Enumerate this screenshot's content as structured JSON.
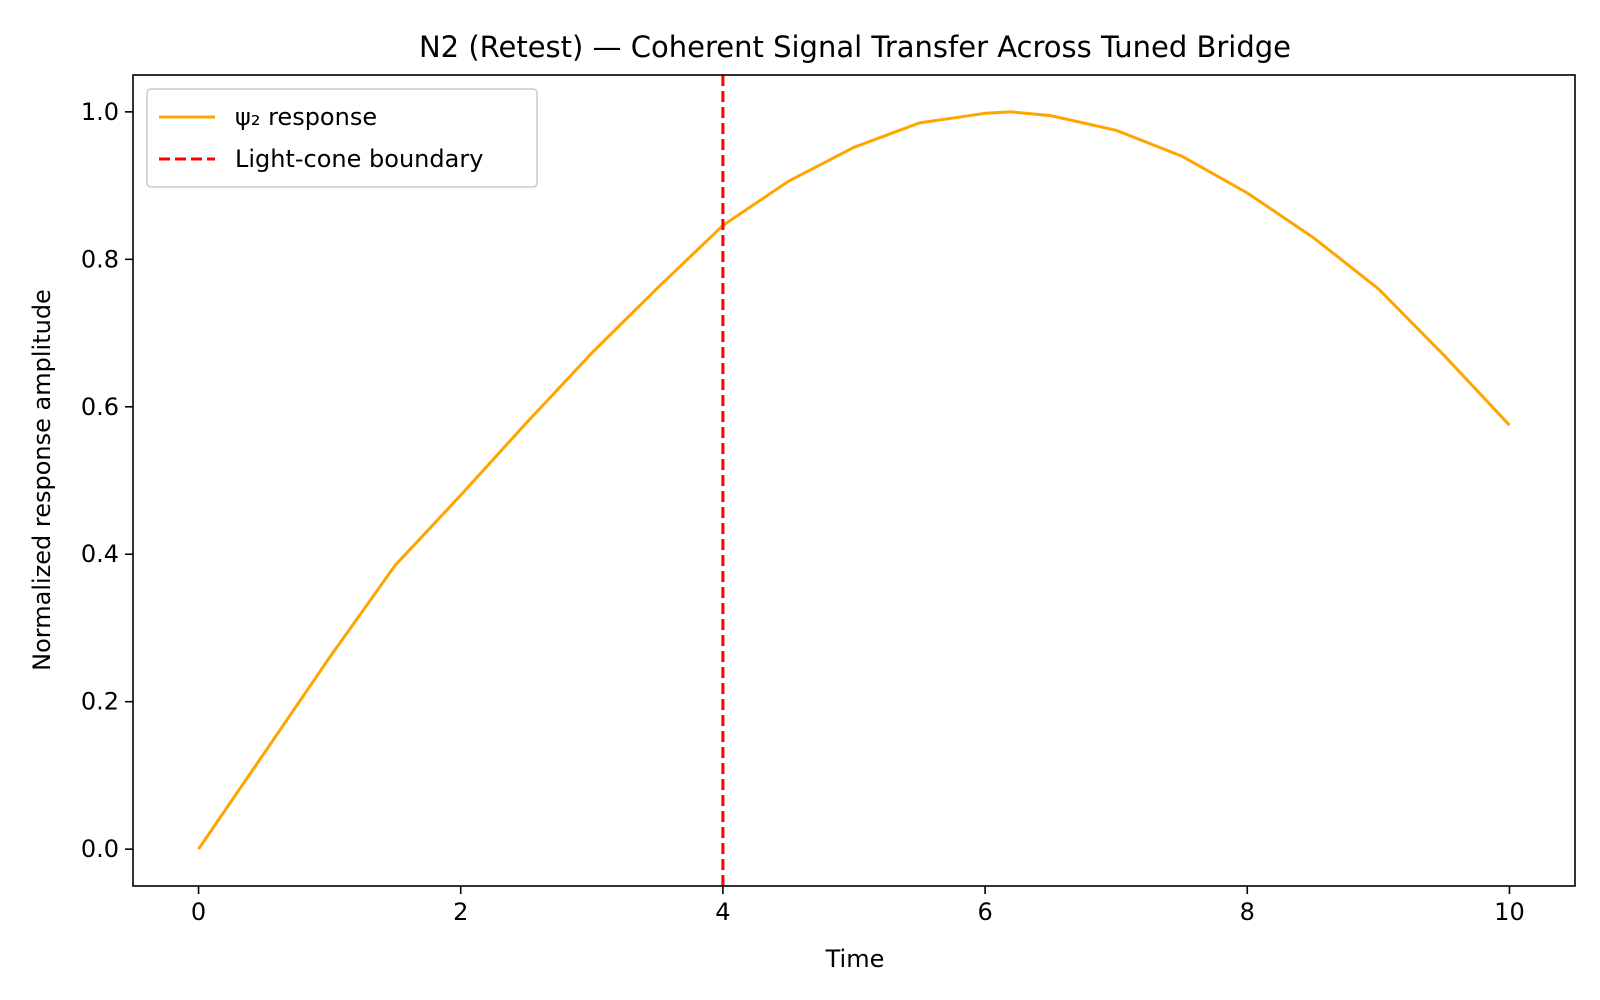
{
  "chart_data": {
    "type": "line",
    "title": "N2 (Retest) — Coherent Signal Transfer Across Tuned Bridge",
    "xlabel": "Time",
    "ylabel": "Normalized response amplitude",
    "xlim": [
      -0.5,
      10.5
    ],
    "ylim": [
      -0.05,
      1.05
    ],
    "xticks": [
      0,
      2,
      4,
      6,
      8,
      10
    ],
    "xtick_labels": [
      "0",
      "2",
      "4",
      "6",
      "8",
      "10"
    ],
    "yticks": [
      0.0,
      0.2,
      0.4,
      0.6,
      0.8,
      1.0
    ],
    "ytick_labels": [
      "0.0",
      "0.2",
      "0.4",
      "0.6",
      "0.8",
      "1.0"
    ],
    "grid": false,
    "legend_position": "top-left",
    "series": [
      {
        "name": "ψ₂ response",
        "color": "#FFA500",
        "style": "solid",
        "x": [
          0,
          0.5,
          1,
          1.5,
          2,
          2.5,
          3,
          3.5,
          4,
          4.5,
          5,
          5.5,
          6,
          6.2,
          6.5,
          7,
          7.5,
          8,
          8.5,
          9,
          9.5,
          10
        ],
        "y": [
          0.0,
          0.13,
          0.26,
          0.385,
          0.48,
          0.578,
          0.673,
          0.761,
          0.846,
          0.906,
          0.952,
          0.985,
          0.998,
          1.0,
          0.995,
          0.975,
          0.94,
          0.89,
          0.83,
          0.76,
          0.67,
          0.575
        ]
      }
    ],
    "vlines": [
      {
        "name": "Light-cone boundary",
        "x": 4,
        "color": "#FF0000",
        "style": "dashed"
      }
    ]
  }
}
